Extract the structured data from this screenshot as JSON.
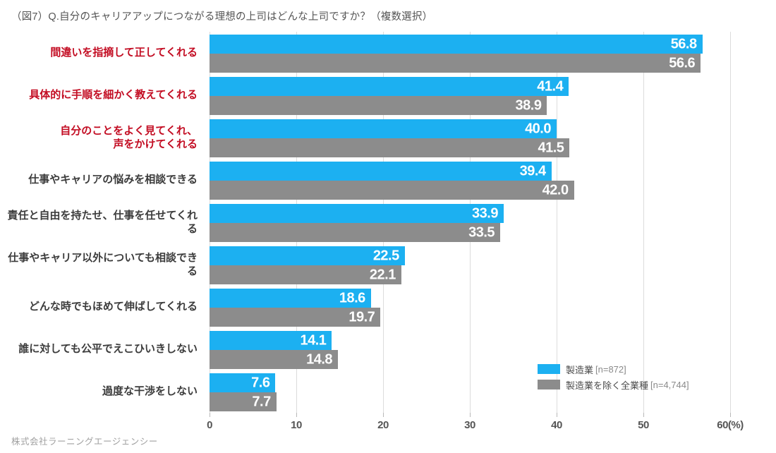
{
  "title": "（図7）Q.自分のキャリアアップにつながる理想の上司はどんな上司ですか？（複数選択）",
  "footer": "株式会社ラーニングエージェンシー",
  "colors": {
    "series_blue": "#1cb0f1",
    "series_gray": "#8c8c8c",
    "highlight_label_red": "#c30d23",
    "label_black": "#3c3c3c",
    "gridline": "#dcdcdc",
    "tick_text": "#555555"
  },
  "chart_data": {
    "type": "bar",
    "orientation": "horizontal",
    "title": "（図7）Q.自分のキャリアアップにつながる理想の上司はどんな上司ですか？（複数選択）",
    "xlabel": "(%)",
    "ylabel": "",
    "xlim": [
      0,
      60
    ],
    "xticks": [
      0,
      10,
      20,
      30,
      40,
      50,
      60
    ],
    "xtick_labels": [
      "0",
      "10",
      "20",
      "30",
      "40",
      "50",
      "60(%)"
    ],
    "grid": true,
    "legend_position": "bottom-right",
    "categories": [
      {
        "label": "間違いを指摘して正してくれる",
        "highlight": true
      },
      {
        "label": "具体的に手順を細かく教えてくれる",
        "highlight": true
      },
      {
        "label": "自分のことをよく見てくれ、\n声をかけてくれる",
        "highlight": true
      },
      {
        "label": "仕事やキャリアの悩みを相談できる",
        "highlight": false
      },
      {
        "label": "責任と自由を持たせ、仕事を任せてくれる",
        "highlight": false
      },
      {
        "label": "仕事やキャリア以外についても相談できる",
        "highlight": false
      },
      {
        "label": "どんな時でもほめて伸ばしてくれる",
        "highlight": false
      },
      {
        "label": "誰に対しても公平でえこひいきしない",
        "highlight": false
      },
      {
        "label": "過度な干渉をしない",
        "highlight": false
      }
    ],
    "series": [
      {
        "name": "製造業",
        "n_label": "[n=872]",
        "color": "#1cb0f1",
        "values": [
          56.8,
          41.4,
          40.0,
          39.4,
          33.9,
          22.5,
          18.6,
          14.1,
          7.6
        ],
        "value_labels": [
          "56.8",
          "41.4",
          "40.0",
          "39.4",
          "33.9",
          "22.5",
          "18.6",
          "14.1",
          "7.6"
        ]
      },
      {
        "name": "製造業を除く全業種",
        "n_label": "[n=4,744]",
        "color": "#8c8c8c",
        "values": [
          56.6,
          38.9,
          41.5,
          42.0,
          33.5,
          22.1,
          19.7,
          14.8,
          7.7
        ],
        "value_labels": [
          "56.6",
          "38.9",
          "41.5",
          "42.0",
          "33.5",
          "22.1",
          "19.7",
          "14.8",
          "7.7"
        ]
      }
    ]
  }
}
